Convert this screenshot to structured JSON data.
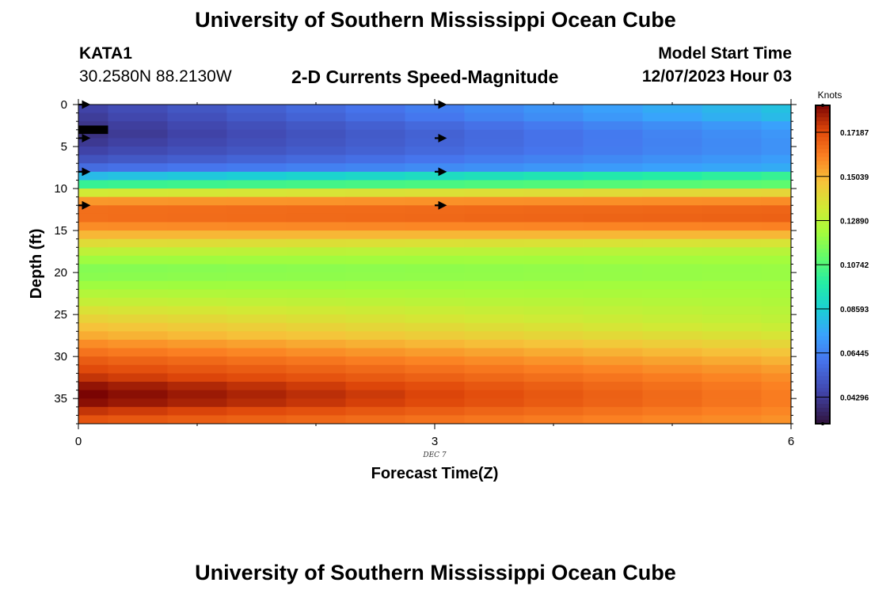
{
  "header": {
    "title": "University of Southern Mississippi Ocean Cube",
    "station_id": "KATA1",
    "coordinates": "30.2580N  88.2130W",
    "subtitle": "2-D Currents Speed-Magnitude",
    "model_start_label": "Model Start Time",
    "model_start_value": "12/07/2023 Hour 03"
  },
  "footer": {
    "title": "University of Southern Mississippi Ocean Cube"
  },
  "chart_data": {
    "type": "heatmap",
    "title": "2-D Currents Speed-Magnitude",
    "xlabel": "Forecast Time(Z)",
    "ylabel": "Depth (ft)",
    "x_ticks": [
      "0",
      "3",
      "6"
    ],
    "x_range": [
      0,
      6
    ],
    "date_label": "DEC 7",
    "y_ticks": [
      "0",
      "5",
      "10",
      "15",
      "20",
      "25",
      "30",
      "35"
    ],
    "y_range": [
      0,
      38
    ],
    "y_inverted": true,
    "colorbar": {
      "title": "Knots",
      "ticks": [
        "0.17187",
        "0.15039",
        "0.12890",
        "0.10742",
        "0.08593",
        "0.06445",
        "0.04296"
      ],
      "tick_values": [
        0.17187,
        0.15039,
        0.1289,
        0.10742,
        0.08593,
        0.06445,
        0.04296
      ],
      "range": [
        0.03,
        0.185
      ],
      "colormap": "turbo"
    },
    "depth_profile_knots": [
      {
        "depth": 0.5,
        "start": 0.045,
        "end": 0.082
      },
      {
        "depth": 1.5,
        "start": 0.043,
        "end": 0.08
      },
      {
        "depth": 2.5,
        "start": 0.041,
        "end": 0.073
      },
      {
        "depth": 3.5,
        "start": 0.04,
        "end": 0.07
      },
      {
        "depth": 4.5,
        "start": 0.042,
        "end": 0.069
      },
      {
        "depth": 5.5,
        "start": 0.045,
        "end": 0.069
      },
      {
        "depth": 6.5,
        "start": 0.05,
        "end": 0.072
      },
      {
        "depth": 7.5,
        "start": 0.058,
        "end": 0.076
      },
      {
        "depth": 8.5,
        "start": 0.08,
        "end": 0.102
      },
      {
        "depth": 9.5,
        "start": 0.102,
        "end": 0.11
      },
      {
        "depth": 10.5,
        "start": 0.135,
        "end": 0.142
      },
      {
        "depth": 11.5,
        "start": 0.156,
        "end": 0.158
      },
      {
        "depth": 12.5,
        "start": 0.164,
        "end": 0.166
      },
      {
        "depth": 13.5,
        "start": 0.164,
        "end": 0.167
      },
      {
        "depth": 14.5,
        "start": 0.158,
        "end": 0.16
      },
      {
        "depth": 15.5,
        "start": 0.15,
        "end": 0.15
      },
      {
        "depth": 16.5,
        "start": 0.14,
        "end": 0.137
      },
      {
        "depth": 17.5,
        "start": 0.13,
        "end": 0.128
      },
      {
        "depth": 18.5,
        "start": 0.122,
        "end": 0.123
      },
      {
        "depth": 19.5,
        "start": 0.117,
        "end": 0.121
      },
      {
        "depth": 20.5,
        "start": 0.118,
        "end": 0.121
      },
      {
        "depth": 21.5,
        "start": 0.122,
        "end": 0.123
      },
      {
        "depth": 22.5,
        "start": 0.127,
        "end": 0.124
      },
      {
        "depth": 23.5,
        "start": 0.132,
        "end": 0.126
      },
      {
        "depth": 24.5,
        "start": 0.138,
        "end": 0.128
      },
      {
        "depth": 25.5,
        "start": 0.143,
        "end": 0.13
      },
      {
        "depth": 26.5,
        "start": 0.148,
        "end": 0.133
      },
      {
        "depth": 27.5,
        "start": 0.152,
        "end": 0.137
      },
      {
        "depth": 28.5,
        "start": 0.158,
        "end": 0.142
      },
      {
        "depth": 29.5,
        "start": 0.163,
        "end": 0.147
      },
      {
        "depth": 30.5,
        "start": 0.168,
        "end": 0.151
      },
      {
        "depth": 31.5,
        "start": 0.172,
        "end": 0.155
      },
      {
        "depth": 32.5,
        "start": 0.176,
        "end": 0.158
      },
      {
        "depth": 33.5,
        "start": 0.182,
        "end": 0.16
      },
      {
        "depth": 34.5,
        "start": 0.185,
        "end": 0.161
      },
      {
        "depth": 35.5,
        "start": 0.183,
        "end": 0.161
      },
      {
        "depth": 36.5,
        "start": 0.176,
        "end": 0.159
      },
      {
        "depth": 37.5,
        "start": 0.17,
        "end": 0.157
      }
    ],
    "time_steps": 12,
    "vector_arrows": [
      {
        "time": 0,
        "depth": 0
      },
      {
        "time": 0,
        "depth": 4
      },
      {
        "time": 0,
        "depth": 8
      },
      {
        "time": 0,
        "depth": 12
      },
      {
        "time": 3,
        "depth": 0
      },
      {
        "time": 3,
        "depth": 4
      },
      {
        "time": 3,
        "depth": 8
      },
      {
        "time": 3,
        "depth": 12
      }
    ],
    "masked_cell": {
      "time_start": 0,
      "time_end": 0.25,
      "depth": 3
    }
  }
}
